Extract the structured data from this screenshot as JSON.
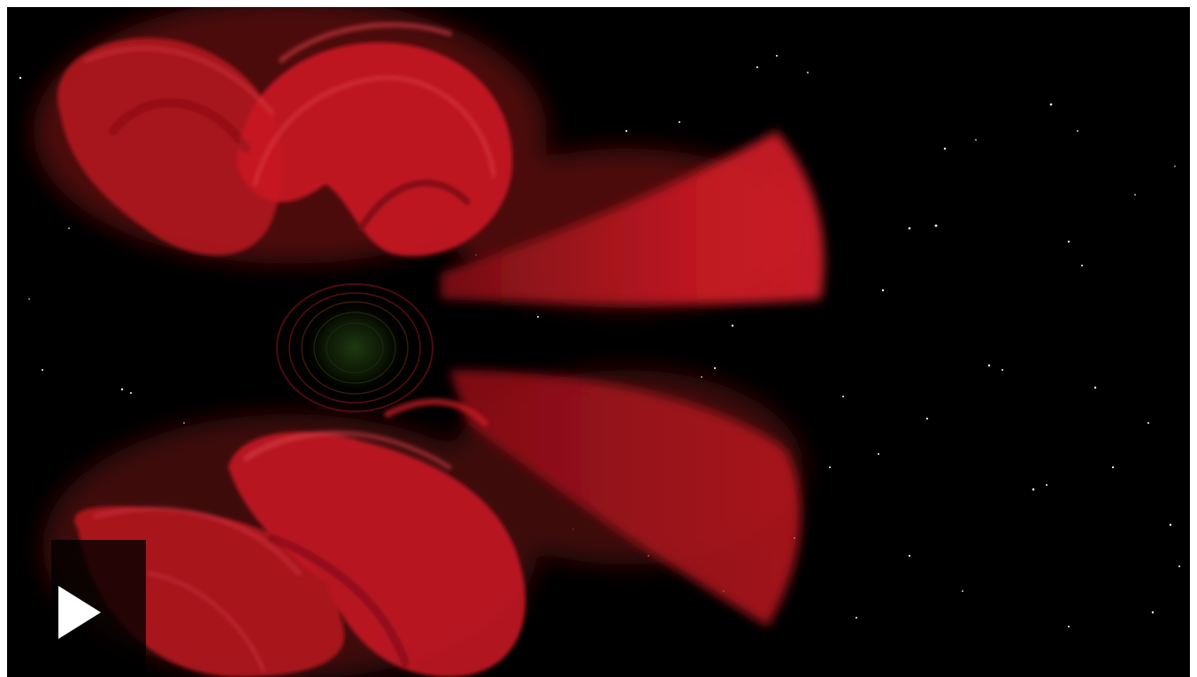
{
  "video_player": {
    "play_icon": "play-icon",
    "colors": {
      "background": "#000000",
      "glow_red": "#c8141e",
      "glow_dark_red": "#5a0a0e",
      "core_green": "#1d3a12",
      "star": "#ffffff",
      "play_overlay": "#000000",
      "play_glyph": "#ffffff"
    }
  }
}
